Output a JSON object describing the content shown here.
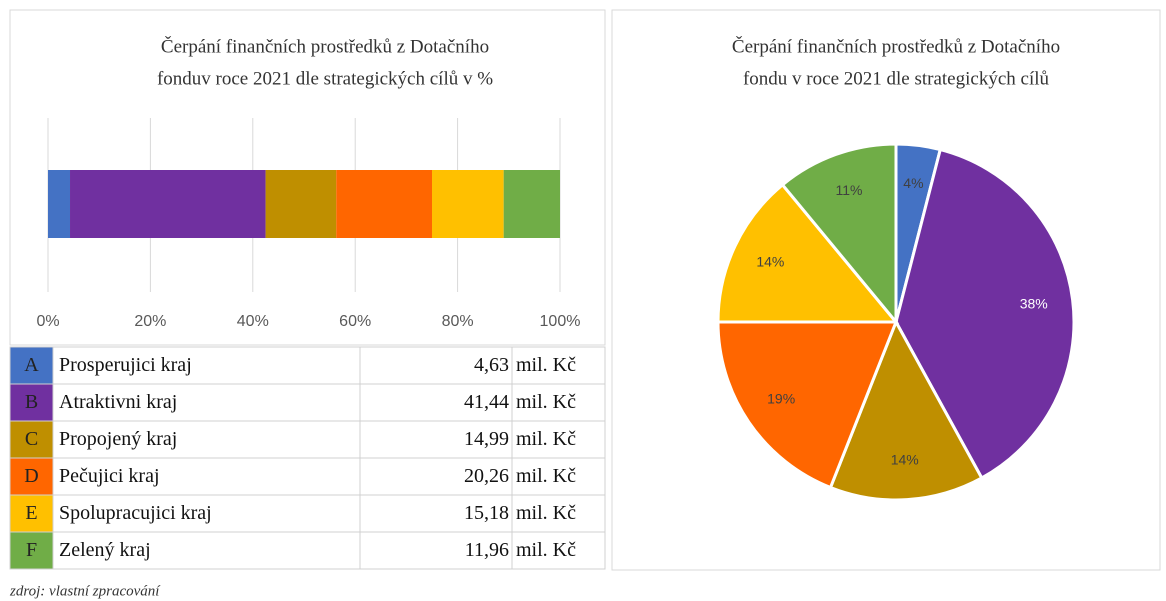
{
  "chart_data": [
    {
      "type": "bar",
      "orientation": "horizontal",
      "stacked": true,
      "title": [
        "Čerpání finančních prostředků z Dotačního",
        "fonduv roce 2021 dle strategických cílů v %"
      ],
      "series": [
        {
          "color": "#4472c4",
          "values": [
            4.3
          ]
        },
        {
          "color": "#7030a0",
          "values": [
            38.2
          ]
        },
        {
          "color": "#bf8f00",
          "values": [
            13.8
          ]
        },
        {
          "color": "#ff6600",
          "values": [
            18.7
          ]
        },
        {
          "color": "#ffc000",
          "values": [
            14.0
          ]
        },
        {
          "color": "#70ad47",
          "values": [
            11.0
          ]
        }
      ],
      "xlim": [
        0,
        100
      ],
      "xticks": [
        {
          "value": 0,
          "label": "0%"
        },
        {
          "value": 20,
          "label": "20%"
        },
        {
          "value": 40,
          "label": "40%"
        },
        {
          "value": 60,
          "label": "60%"
        },
        {
          "value": 80,
          "label": "80%"
        },
        {
          "value": 100,
          "label": "100%"
        }
      ],
      "grid": true
    },
    {
      "type": "pie",
      "title": [
        "Čerpání finančních prostředků z Dotačního",
        "fondu v roce 2021 dle strategických cílů"
      ],
      "values": [
        4,
        38,
        14,
        19,
        14,
        11
      ],
      "value_labels": [
        "4%",
        "38%",
        "14%",
        "19%",
        "14%",
        "11%"
      ],
      "colors": [
        "#4472c4",
        "#7030a0",
        "#bf8f00",
        "#ff6600",
        "#ffc000",
        "#70ad47"
      ]
    }
  ],
  "table": {
    "rows": [
      [
        "A",
        "Prosperujici kraj",
        "4,63",
        "mil. Kč"
      ],
      [
        "B",
        "Atraktivni kraj",
        "41,44",
        "mil. Kč"
      ],
      [
        "C",
        "Propojený kraj",
        "14,99",
        "mil. Kč"
      ],
      [
        "D",
        "Pečujici kraj",
        "20,26",
        "mil. Kč"
      ],
      [
        "E",
        "Spolupracujici kraj",
        "15,18",
        "mil. Kč"
      ],
      [
        "F",
        "Zelený kraj",
        "11,96",
        "mil. Kč"
      ]
    ]
  },
  "source": "zdroj: vlastní zpracování"
}
